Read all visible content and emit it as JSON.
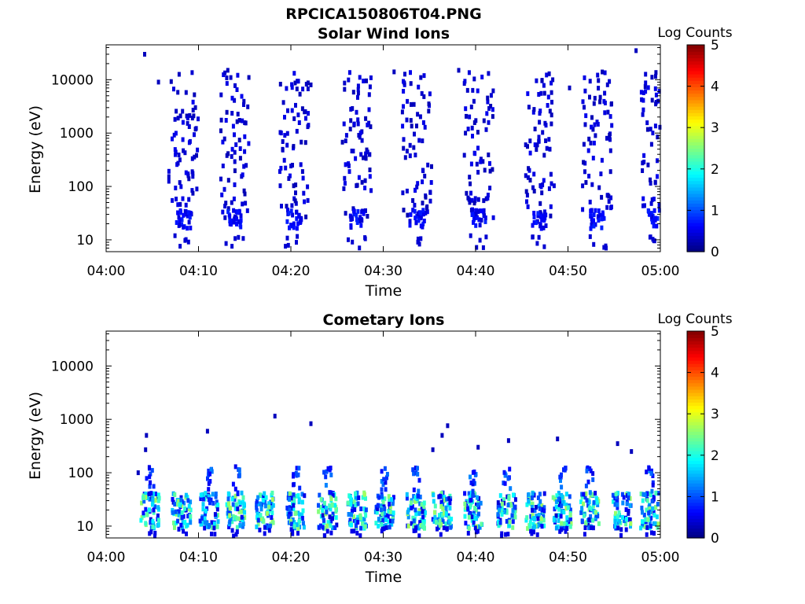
{
  "figure_title": "RPCICA150806T04.PNG",
  "chart_data": [
    {
      "type": "heatmap",
      "title": "Solar Wind Ions",
      "xlabel": "Time",
      "ylabel": "Energy (eV)",
      "y_scale": "log",
      "ylim": [
        6,
        45000
      ],
      "x_ticks": [
        "04:00",
        "04:10",
        "04:20",
        "04:30",
        "04:40",
        "04:50",
        "05:00"
      ],
      "y_ticks": [
        "10",
        "100",
        "1000",
        "10000"
      ],
      "colorbar": {
        "label": "Log Counts",
        "ticks": [
          "0",
          "1",
          "2",
          "3",
          "4",
          "5"
        ],
        "range": [
          0,
          5
        ],
        "colormap": "jet"
      },
      "x_range_min": [
        0,
        60
      ],
      "bursts_min": [
        8.2,
        13.8,
        20.2,
        27.0,
        33.5,
        40.2,
        46.8,
        53.0,
        59.3
      ],
      "pixels_log_counts": [
        [
          4,
          30000.0,
          0.3
        ],
        [
          5.5,
          9000,
          0.3
        ],
        [
          9.5,
          3000,
          0.3
        ],
        [
          13,
          15000,
          0.3
        ],
        [
          22,
          8000,
          0.3
        ],
        [
          31,
          14000,
          0.3
        ],
        [
          38,
          15000,
          0.3
        ],
        [
          50,
          7000,
          0.3
        ],
        [
          57.2,
          35000,
          0.3
        ]
      ]
    },
    {
      "type": "heatmap",
      "title": "Cometary Ions",
      "xlabel": "Time",
      "ylabel": "Energy (eV)",
      "y_scale": "log",
      "ylim": [
        6,
        45000
      ],
      "x_ticks": [
        "04:00",
        "04:10",
        "04:20",
        "04:30",
        "04:40",
        "04:50",
        "05:00"
      ],
      "y_ticks": [
        "10",
        "100",
        "1000",
        "10000"
      ],
      "colorbar": {
        "label": "Log Counts",
        "ticks": [
          "0",
          "1",
          "2",
          "3",
          "4",
          "5"
        ],
        "range": [
          0,
          5
        ],
        "colormap": "jet"
      },
      "x_range_min": [
        0,
        60
      ],
      "bursts_min": [
        4.6,
        8.0,
        11.0,
        13.9,
        17.0,
        20.4,
        23.8,
        27.0,
        30.0,
        33.4,
        36.2,
        39.6,
        43.2,
        46.3,
        49.2,
        52.2,
        55.7,
        58.7
      ],
      "pixels_log_counts": [
        [
          4.2,
          500,
          0.3
        ],
        [
          4.1,
          270,
          0.3
        ],
        [
          3.3,
          100,
          0.3
        ],
        [
          10.8,
          600,
          0.3
        ],
        [
          18.1,
          1150,
          0.3
        ],
        [
          22.0,
          830,
          0.3
        ],
        [
          35.2,
          270,
          0.3
        ],
        [
          36.2,
          500,
          0.3
        ],
        [
          36.8,
          760,
          0.3
        ],
        [
          40.1,
          300,
          0.3
        ],
        [
          43.4,
          400,
          0.3
        ],
        [
          48.7,
          430,
          0.3
        ],
        [
          55.2,
          350,
          0.3
        ],
        [
          56.7,
          250,
          0.3
        ],
        [
          59.9,
          140,
          0.3
        ]
      ]
    }
  ]
}
